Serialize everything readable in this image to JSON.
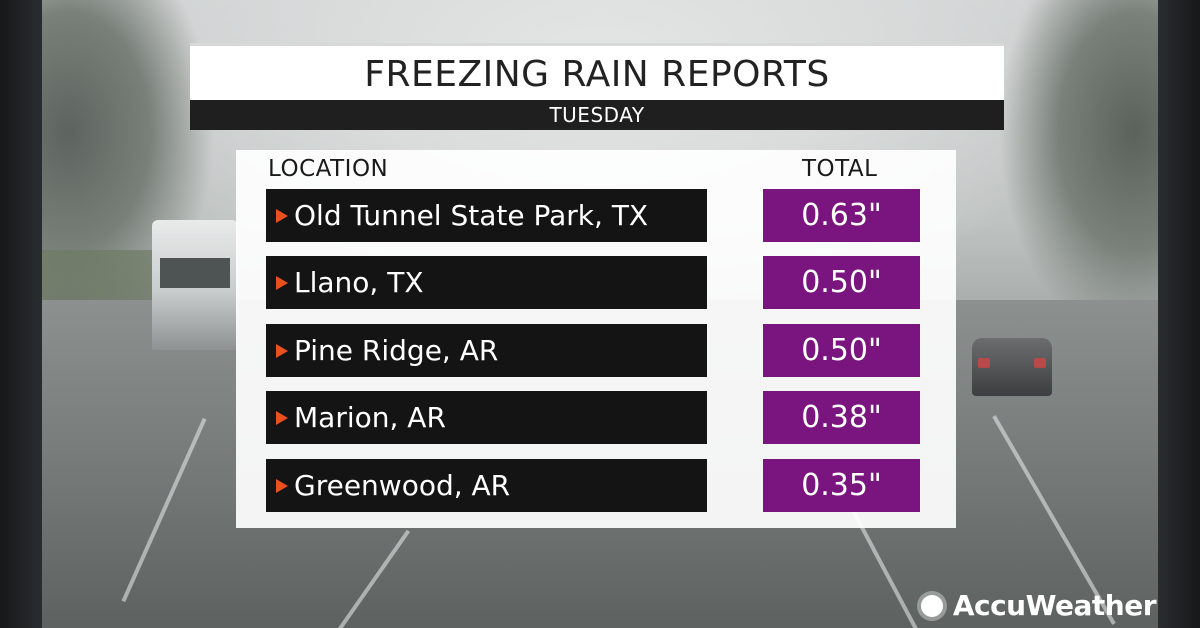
{
  "header": {
    "title": "FREEZING RAIN REPORTS",
    "subtitle": "TUESDAY"
  },
  "table": {
    "columns": [
      "LOCATION",
      "TOTAL"
    ],
    "rows": [
      {
        "location": "Old Tunnel State Park, TX",
        "total": "0.63\""
      },
      {
        "location": "Llano, TX",
        "total": "0.50\""
      },
      {
        "location": "Pine Ridge, AR",
        "total": "0.50\""
      },
      {
        "location": "Marion, AR",
        "total": "0.38\""
      },
      {
        "location": "Greenwood, AR",
        "total": "0.35\""
      }
    ]
  },
  "brand": {
    "name": "AccuWeather",
    "icon": "sun-logo-icon"
  },
  "colors": {
    "accent_arrow": "#e8501e",
    "total_box": "#7a147e",
    "location_bar": "#141414"
  }
}
